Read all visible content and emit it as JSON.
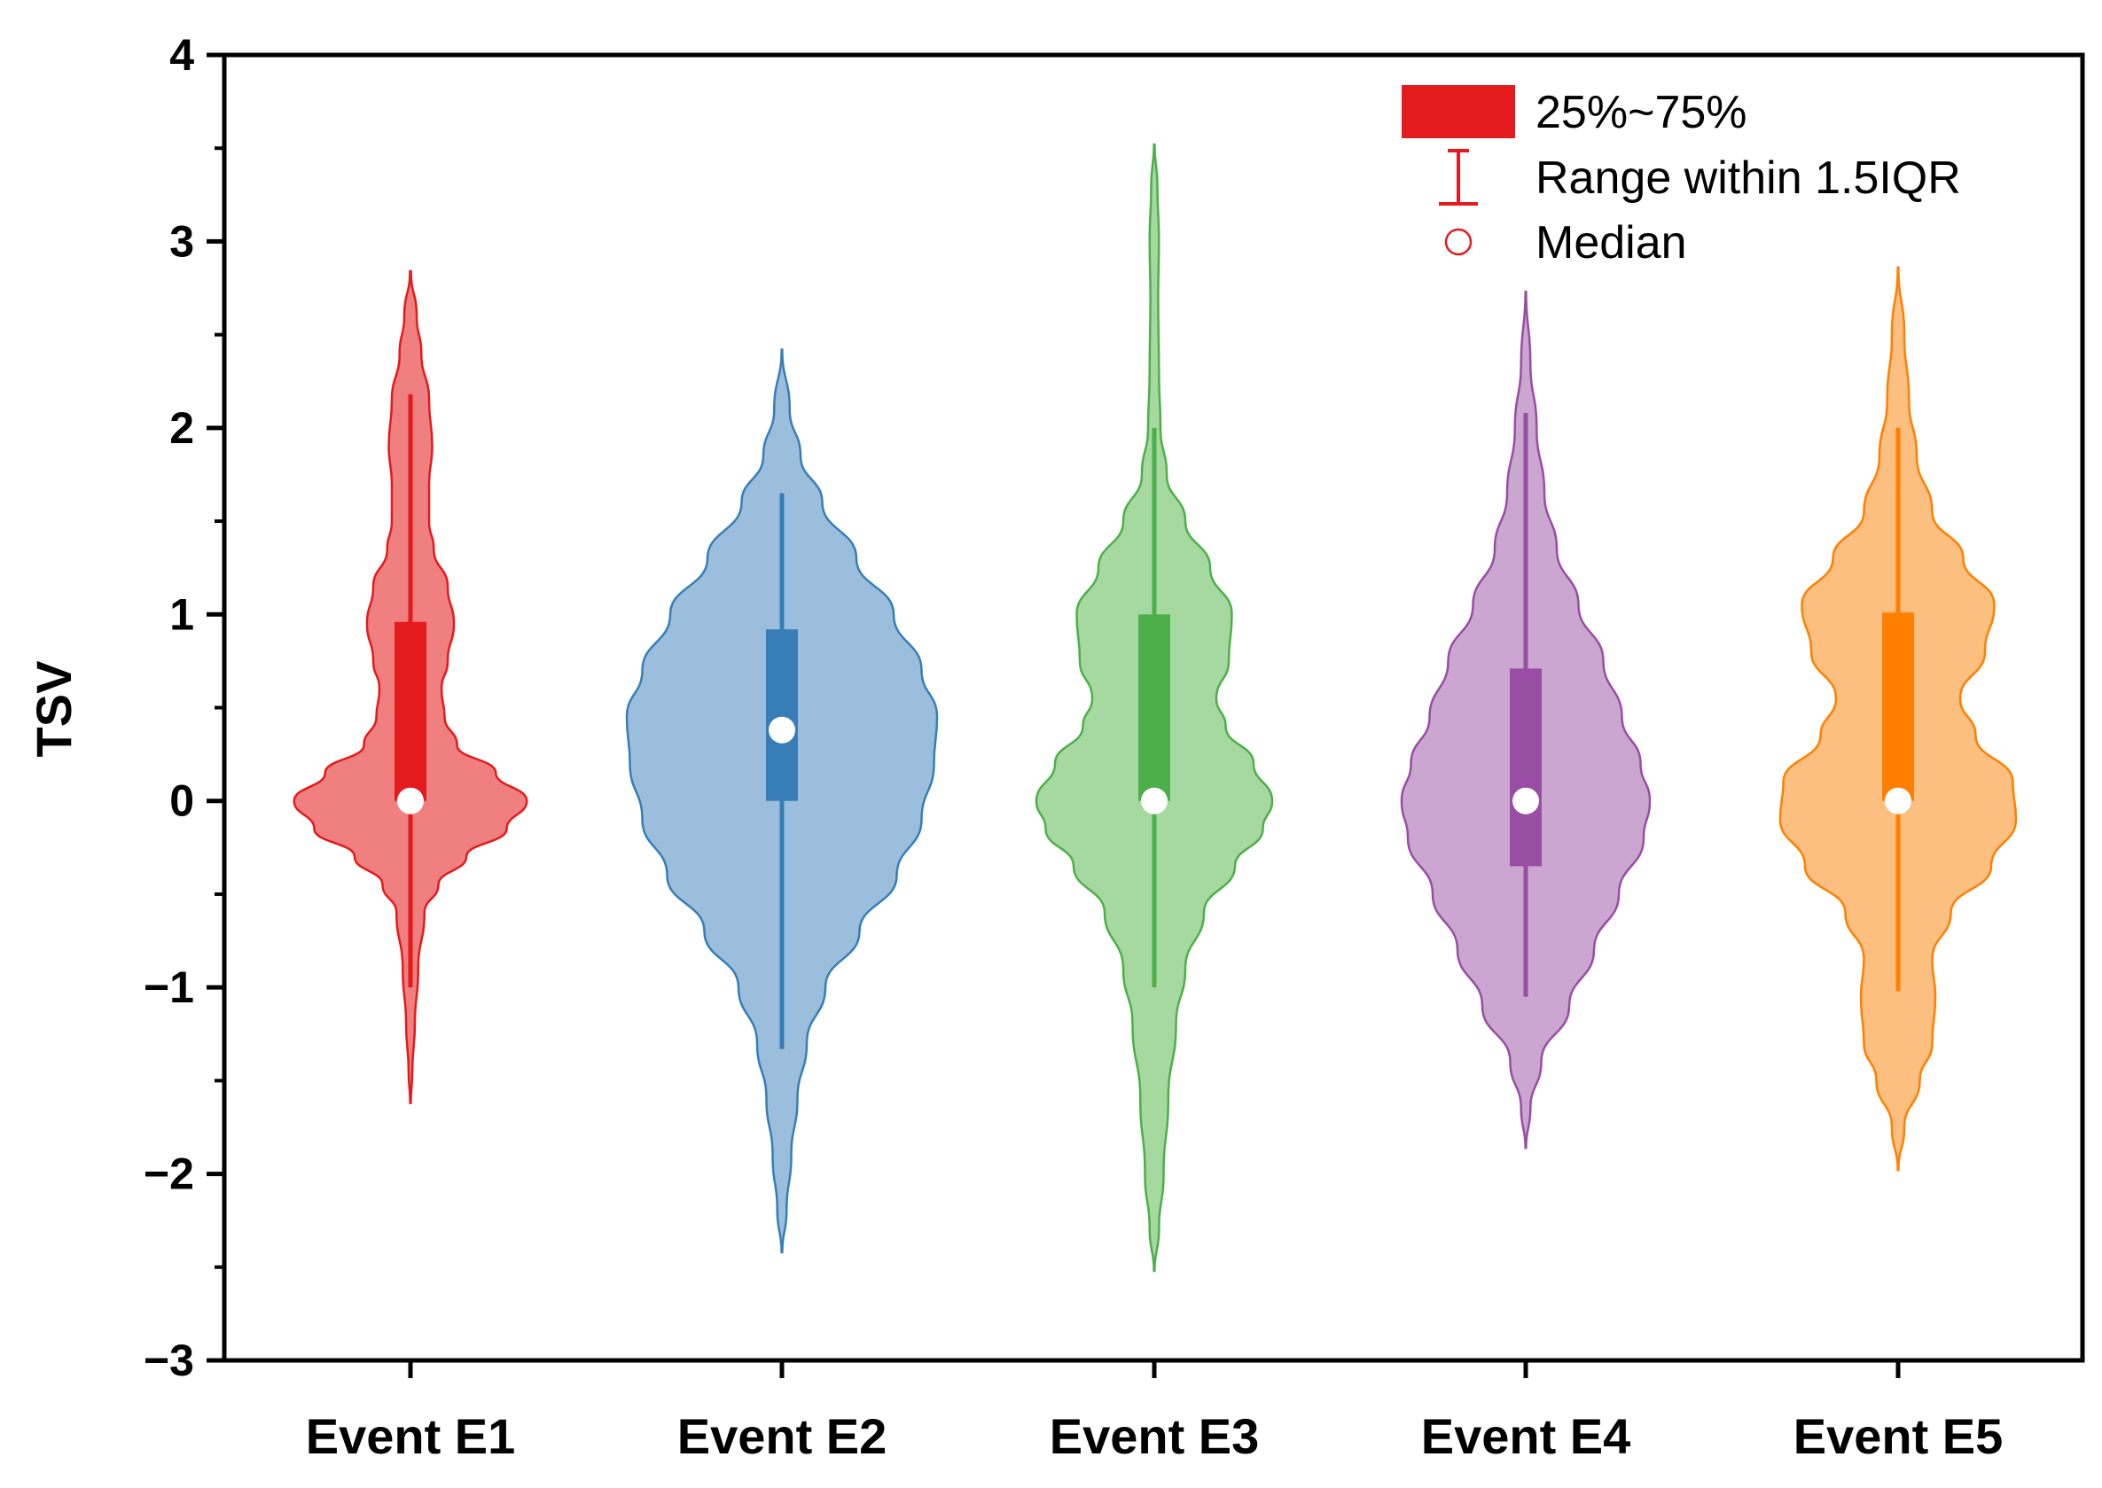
{
  "chart_data": {
    "type": "violin",
    "title": "",
    "xlabel": "",
    "ylabel": "TSV",
    "ylim": [
      -3,
      4
    ],
    "yticks": [
      {
        "value": -3,
        "label": "−3"
      },
      {
        "value": -2,
        "label": "−2"
      },
      {
        "value": -1,
        "label": "−1"
      },
      {
        "value": 0,
        "label": "0"
      },
      {
        "value": 1,
        "label": "1"
      },
      {
        "value": 2,
        "label": "2"
      },
      {
        "value": 3,
        "label": "3"
      },
      {
        "value": 4,
        "label": "4"
      }
    ],
    "minor_tick_step": 0.5,
    "grid": false,
    "categories": [
      "Event E1",
      "Event E2",
      "Event E3",
      "Event E4",
      "Event E5"
    ],
    "series": [
      {
        "name": "Event E1",
        "fill": "#F08080",
        "stroke": "#E41A1C",
        "box": "#E41A1C",
        "q1": 0,
        "q3": 0.96,
        "median": 0,
        "whisker_low": -1.0,
        "whisker_high": 2.18,
        "density": [
          [
            -1.62,
            0.002
          ],
          [
            -1.45,
            0.012
          ],
          [
            -1.2,
            0.028
          ],
          [
            -0.9,
            0.05
          ],
          [
            -0.6,
            0.09
          ],
          [
            -0.45,
            0.18
          ],
          [
            -0.3,
            0.36
          ],
          [
            -0.15,
            0.62
          ],
          [
            0,
            0.75
          ],
          [
            0.15,
            0.55
          ],
          [
            0.3,
            0.3
          ],
          [
            0.45,
            0.22
          ],
          [
            0.6,
            0.2
          ],
          [
            0.75,
            0.24
          ],
          [
            0.95,
            0.28
          ],
          [
            1.15,
            0.24
          ],
          [
            1.35,
            0.15
          ],
          [
            1.5,
            0.12
          ],
          [
            1.7,
            0.12
          ],
          [
            1.9,
            0.14
          ],
          [
            2.15,
            0.12
          ],
          [
            2.4,
            0.07
          ],
          [
            2.6,
            0.04
          ],
          [
            2.84,
            0.003
          ]
        ]
      },
      {
        "name": "Event E2",
        "fill": "#9BBEDC",
        "stroke": "#377EB8",
        "box": "#377EB8",
        "q1": 0,
        "q3": 0.92,
        "median": 0.38,
        "whisker_low": -1.33,
        "whisker_high": 1.65,
        "density": [
          [
            -2.42,
            0.002
          ],
          [
            -2.2,
            0.03
          ],
          [
            -1.9,
            0.06
          ],
          [
            -1.6,
            0.1
          ],
          [
            -1.3,
            0.16
          ],
          [
            -1.0,
            0.28
          ],
          [
            -0.7,
            0.5
          ],
          [
            -0.4,
            0.74
          ],
          [
            -0.1,
            0.9
          ],
          [
            0.2,
            0.98
          ],
          [
            0.45,
            1.0
          ],
          [
            0.7,
            0.9
          ],
          [
            1.0,
            0.72
          ],
          [
            1.3,
            0.48
          ],
          [
            1.6,
            0.26
          ],
          [
            1.85,
            0.12
          ],
          [
            2.1,
            0.05
          ],
          [
            2.42,
            0.002
          ]
        ]
      },
      {
        "name": "Event E3",
        "fill": "#A6D9A0",
        "stroke": "#4DAF4A",
        "box": "#4DAF4A",
        "q1": 0,
        "q3": 1.0,
        "median": 0,
        "whisker_low": -1.0,
        "whisker_high": 2.0,
        "density": [
          [
            -2.52,
            0.002
          ],
          [
            -2.3,
            0.03
          ],
          [
            -2.0,
            0.06
          ],
          [
            -1.6,
            0.09
          ],
          [
            -1.2,
            0.14
          ],
          [
            -0.9,
            0.2
          ],
          [
            -0.6,
            0.32
          ],
          [
            -0.35,
            0.52
          ],
          [
            -0.15,
            0.7
          ],
          [
            0,
            0.76
          ],
          [
            0.2,
            0.64
          ],
          [
            0.4,
            0.46
          ],
          [
            0.55,
            0.4
          ],
          [
            0.75,
            0.48
          ],
          [
            1.0,
            0.5
          ],
          [
            1.25,
            0.36
          ],
          [
            1.5,
            0.2
          ],
          [
            1.75,
            0.08
          ],
          [
            2.0,
            0.04
          ],
          [
            2.3,
            0.03
          ],
          [
            2.7,
            0.025
          ],
          [
            3.0,
            0.03
          ],
          [
            3.3,
            0.02
          ],
          [
            3.52,
            0.002
          ]
        ]
      },
      {
        "name": "Event E4",
        "fill": "#CBA6D1",
        "stroke": "#984EA3",
        "box": "#984EA3",
        "q1": -0.35,
        "q3": 0.71,
        "median": 0,
        "whisker_low": -1.05,
        "whisker_high": 2.08,
        "density": [
          [
            -1.86,
            0.002
          ],
          [
            -1.65,
            0.03
          ],
          [
            -1.4,
            0.1
          ],
          [
            -1.1,
            0.28
          ],
          [
            -0.8,
            0.44
          ],
          [
            -0.5,
            0.6
          ],
          [
            -0.2,
            0.76
          ],
          [
            0,
            0.8
          ],
          [
            0.2,
            0.74
          ],
          [
            0.45,
            0.62
          ],
          [
            0.75,
            0.5
          ],
          [
            1.05,
            0.34
          ],
          [
            1.35,
            0.2
          ],
          [
            1.65,
            0.12
          ],
          [
            2.0,
            0.07
          ],
          [
            2.35,
            0.03
          ],
          [
            2.73,
            0.002
          ]
        ]
      },
      {
        "name": "Event E5",
        "fill": "#FDBF80",
        "stroke": "#FF7F00",
        "box": "#FF7F00",
        "q1": 0,
        "q3": 1.01,
        "median": 0,
        "whisker_low": -1.02,
        "whisker_high": 2.0,
        "density": [
          [
            -1.98,
            0.002
          ],
          [
            -1.75,
            0.04
          ],
          [
            -1.5,
            0.14
          ],
          [
            -1.3,
            0.22
          ],
          [
            -1.05,
            0.24
          ],
          [
            -0.85,
            0.22
          ],
          [
            -0.6,
            0.34
          ],
          [
            -0.35,
            0.6
          ],
          [
            -0.1,
            0.76
          ],
          [
            0.1,
            0.74
          ],
          [
            0.35,
            0.5
          ],
          [
            0.55,
            0.4
          ],
          [
            0.8,
            0.56
          ],
          [
            1.05,
            0.62
          ],
          [
            1.3,
            0.42
          ],
          [
            1.55,
            0.22
          ],
          [
            1.85,
            0.12
          ],
          [
            2.15,
            0.07
          ],
          [
            2.5,
            0.04
          ],
          [
            2.86,
            0.002
          ]
        ]
      }
    ],
    "legend": {
      "position": "top-right",
      "items": [
        {
          "symbol": "box",
          "label": "25%~75%"
        },
        {
          "symbol": "whisker",
          "label": "Range within 1.5IQR"
        },
        {
          "symbol": "median",
          "label": "Median"
        }
      ]
    }
  }
}
